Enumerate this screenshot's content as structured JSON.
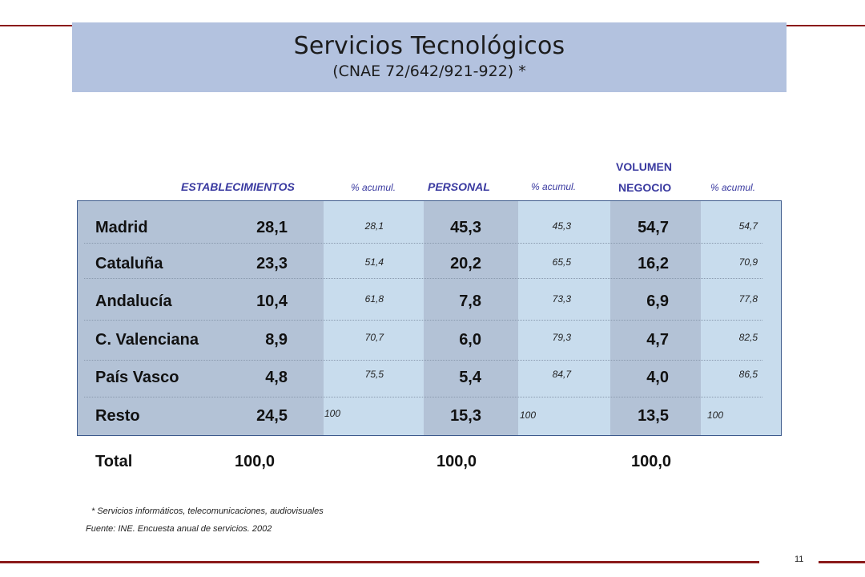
{
  "title": "Servicios Tecnológicos",
  "subtitle": "(CNAE 72/642/921-922)  *",
  "headers": {
    "establecimientos": "ESTABLECIMIENTOS",
    "acumul1": "% acumul.",
    "personal": "PERSONAL",
    "acumul2": "% acumul.",
    "volumen_line1": "VOLUMEN",
    "volumen_line2": "NEGOCIO",
    "acumul3": "% acumul."
  },
  "rows": [
    {
      "region": "Madrid",
      "est": "28,1",
      "est_acc": "28,1",
      "per": "45,3",
      "per_acc": "45,3",
      "vol": "54,7",
      "vol_acc": "54,7"
    },
    {
      "region": "Cataluña",
      "est": "23,3",
      "est_acc": "51,4",
      "per": "20,2",
      "per_acc": "65,5",
      "vol": "16,2",
      "vol_acc": "70,9"
    },
    {
      "region": "Andalucía",
      "est": "10,4",
      "est_acc": "61,8",
      "per": "7,8",
      "per_acc": "73,3",
      "vol": "6,9",
      "vol_acc": "77,8"
    },
    {
      "region": "C. Valenciana",
      "est": "8,9",
      "est_acc": "70,7",
      "per": "6,0",
      "per_acc": "79,3",
      "vol": "4,7",
      "vol_acc": "82,5"
    },
    {
      "region": "País Vasco",
      "est": "4,8",
      "est_acc": "75,5",
      "per": "5,4",
      "per_acc": "84,7",
      "vol": "4,0",
      "vol_acc": "86,5"
    },
    {
      "region": "Resto",
      "est": "24,5",
      "est_acc": "100",
      "per": "15,3",
      "per_acc": "100",
      "vol": "13,5",
      "vol_acc": "100"
    }
  ],
  "total": {
    "label": "Total",
    "est": "100,0",
    "per": "100,0",
    "vol": "100,0"
  },
  "footnote": "* Servicios informáticos, telecomunicaciones, audiovisuales",
  "source": "Fuente: INE. Encuesta anual de servicios. 2002",
  "page_number": "11"
}
